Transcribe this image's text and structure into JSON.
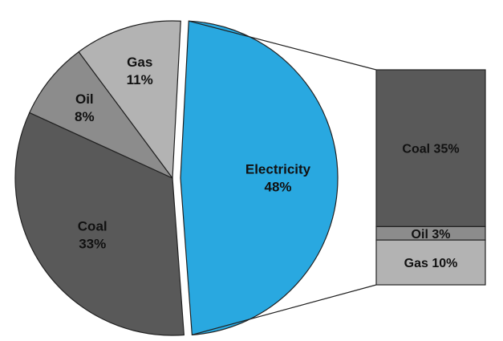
{
  "chart_data": [
    {
      "type": "pie",
      "categories": [
        "Electricity",
        "Coal",
        "Oil",
        "Gas"
      ],
      "values": [
        48,
        33,
        8,
        11
      ],
      "labels": {
        "Electricity": {
          "name": "Electricity",
          "value": "48%"
        },
        "Coal": {
          "name": "Coal",
          "value": "33%"
        },
        "Oil": {
          "name": "Oil",
          "value": "8%"
        },
        "Gas": {
          "name": "Gas",
          "value": "11%"
        }
      },
      "colors": {
        "Electricity": "#29A8E0",
        "Coal": "#595959",
        "Oil": "#8C8C8C",
        "Gas": "#B3B3B3"
      },
      "exploded_slice": "Electricity"
    },
    {
      "type": "bar",
      "stacked": true,
      "categories": [
        "Coal",
        "Oil",
        "Gas"
      ],
      "values": [
        35,
        3,
        10
      ],
      "labels": {
        "Coal": "Coal  35%",
        "Oil": "Oil  3%",
        "Gas": "Gas  10%"
      },
      "colors": {
        "Coal": "#595959",
        "Oil": "#8C8C8C",
        "Gas": "#B3B3B3"
      }
    }
  ]
}
